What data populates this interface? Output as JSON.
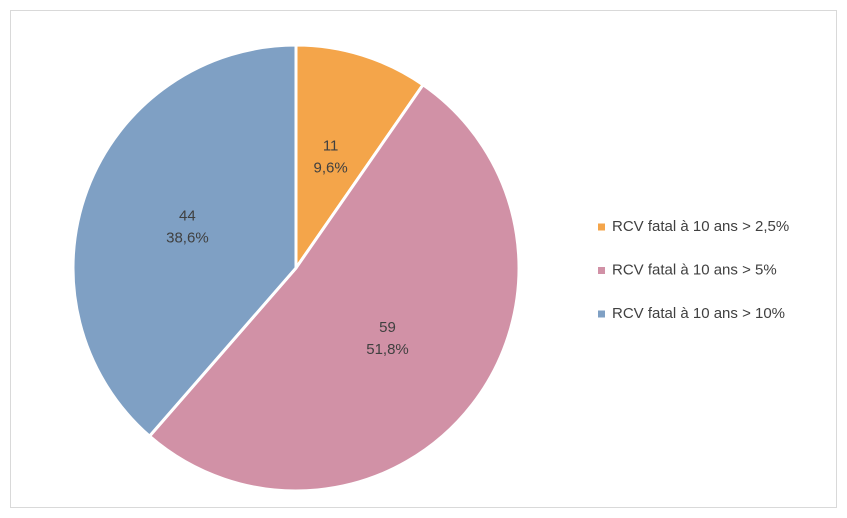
{
  "chart_data": {
    "type": "pie",
    "categories": [
      "RCV fatal à 10 ans > 2,5%",
      "RCV fatal à 10 ans > 5%",
      "RCV fatal à 10 ans > 10%"
    ],
    "values": [
      11,
      59,
      44
    ],
    "shares": [
      9.6,
      51.8,
      38.6
    ],
    "share_labels": [
      "9,6%",
      "51,8%",
      "38,6%"
    ],
    "colors": [
      "#f4a54a",
      "#d191a6",
      "#7fa0c4"
    ],
    "legend": "right"
  }
}
